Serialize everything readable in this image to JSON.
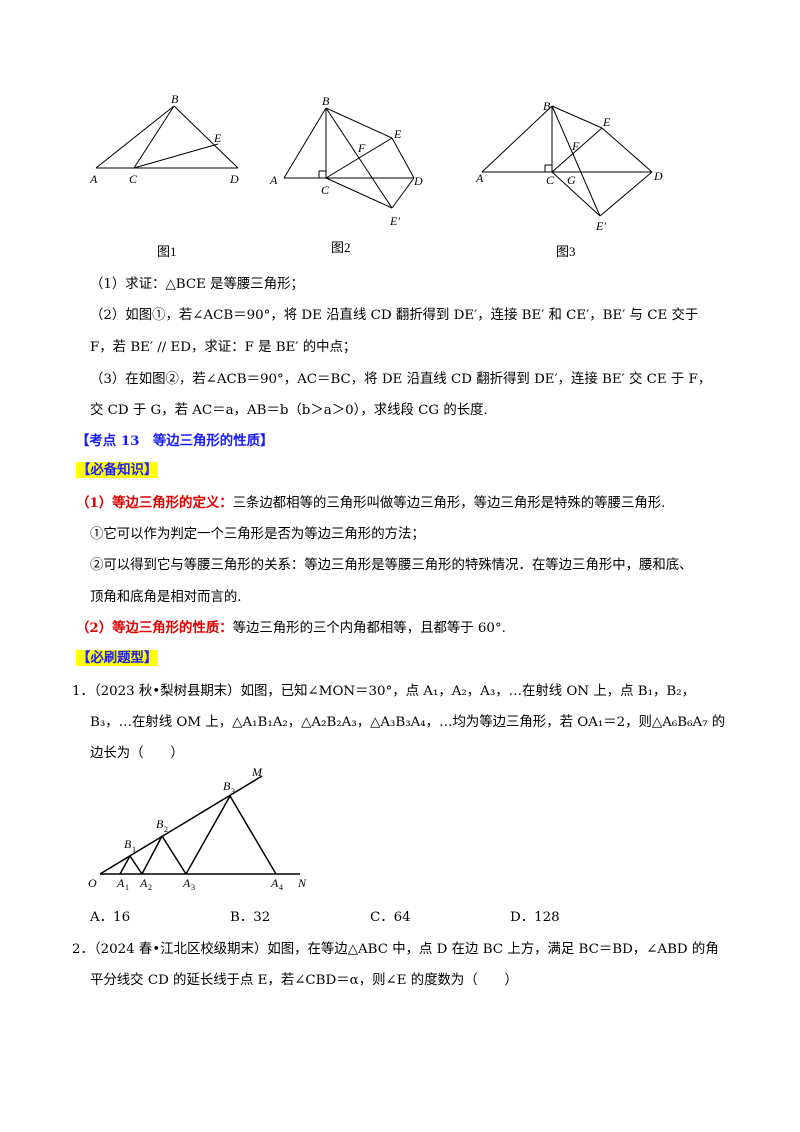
{
  "figures": {
    "fig1": {
      "caption": "图1",
      "labels": {
        "A": "A",
        "B": "B",
        "C": "C",
        "D": "D",
        "E": "E"
      }
    },
    "fig2": {
      "caption": "图2",
      "labels": {
        "A": "A",
        "B": "B",
        "C": "C",
        "D": "D",
        "E": "E",
        "F": "F",
        "E_prime": "E′"
      }
    },
    "fig3": {
      "caption": "图3",
      "labels": {
        "A": "A",
        "B": "B",
        "C": "C",
        "D": "D",
        "E": "E",
        "F": "F",
        "G": "G",
        "E_prime": "E′"
      }
    },
    "fig4": {
      "labels": {
        "O": "O",
        "A1": "A",
        "A2": "A",
        "A3": "A",
        "A4": "A",
        "B1": "B",
        "B2": "B",
        "B3": "B",
        "M": "M",
        "N": "N",
        "s1": "1",
        "s2": "2",
        "s3": "3",
        "s4": "4"
      }
    }
  },
  "problem": {
    "q1": "（1）求证：△BCE 是等腰三角形；",
    "q2_line1": "（2）如图①，若∠ACB＝90°，将 DE 沿直线 CD 翻折得到 DE′，连接 BE′ 和 CE′，BE′ 与 CE 交于",
    "q2_line2": "F，若 BE′ // ED，求证：F 是 BE′ 的中点；",
    "q3_line1": "（3）在如图②，若∠ACB＝90°，AC＝BC，将 DE 沿直线 CD 翻折得到 DE′，连接 BE′ 交 CE 于 F，",
    "q3_line2": "交 CD 于 G，若 AC＝a，AB＝b（b＞a＞0），求线段 CG 的长度."
  },
  "section": {
    "heading": "【考点 13　等边三角形的性质】",
    "knowledge_tag": "【必备知识】",
    "def_label": "（1）等边三角形的定义：",
    "def_text": "三条边都相等的三角形叫做等边三角形，等边三角形是特殊的等腰三角形.",
    "point1": "①它可以作为判定一个三角形是否为等边三角形的方法；",
    "point2_line1": "②可以得到它与等腰三角形的关系：等边三角形是等腰三角形的特殊情况．在等边三角形中，腰和底、",
    "point2_line2": "顶角和底角是相对而言的.",
    "prop_label": "（2）等边三角形的性质：",
    "prop_text": "等边三角形的三个内角都相等，且都等于 60°.",
    "practice_tag": "【必刷题型】"
  },
  "question1": {
    "line1": "1．（2023 秋•梨树县期末）如图，已知∠MON＝30°，点 A₁，A₂，A₃，…在射线 ON 上，点 B₁，B₂，",
    "line2": "B₃，…在射线 OM 上，△A₁B₁A₂，△A₂B₂A₃，△A₃B₃A₄，…均为等边三角形，若 OA₁＝2，则△A₆B₆A₇ 的",
    "line3": "边长为（　　）",
    "options": [
      "A．16",
      "B．32",
      "C．64",
      "D．128"
    ]
  },
  "question2": {
    "line1": "2．（2024 春•江北区校级期末）如图，在等边△ABC 中，点 D 在边 BC 上方，满足 BC＝BD，∠ABD 的角",
    "line2": "平分线交 CD 的延长线于点 E，若∠CBD＝α，则∠E 的度数为（　　）"
  }
}
